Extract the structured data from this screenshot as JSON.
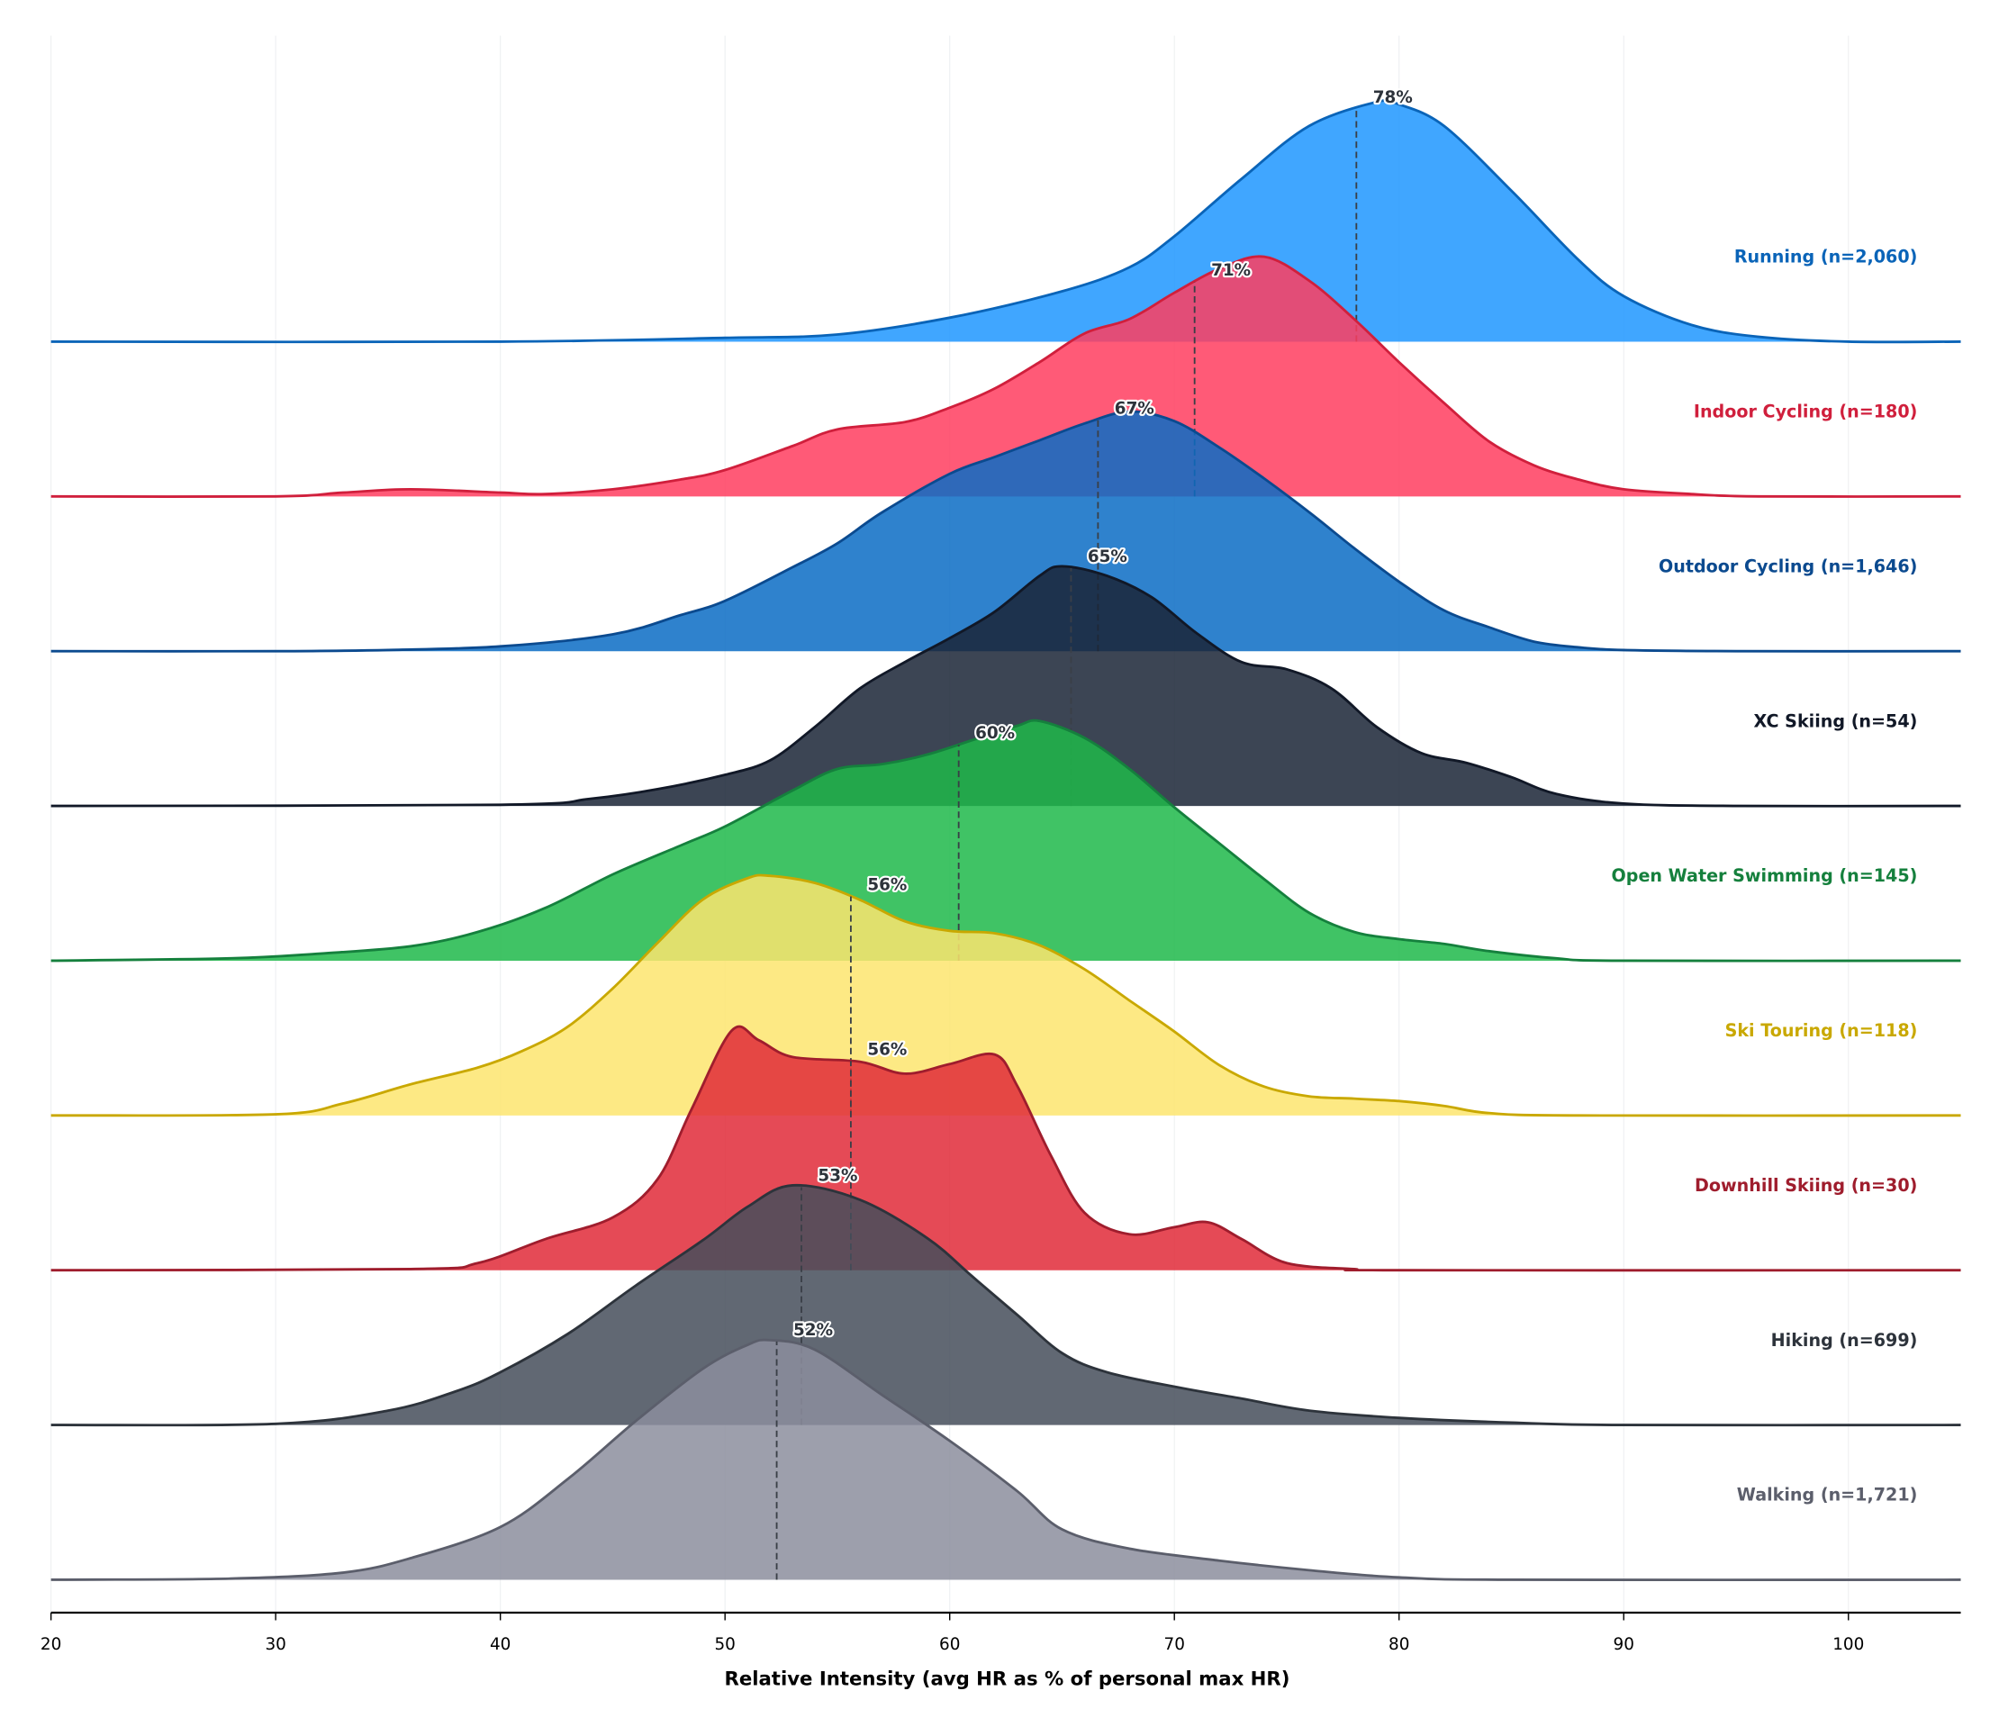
{
  "chart_data": {
    "type": "ridgeline",
    "xlabel": "Relative Intensity  (avg HR as % of personal max HR)",
    "xlim": [
      20,
      105
    ],
    "xticks": [
      "20",
      "30",
      "40",
      "50",
      "60",
      "70",
      "80",
      "90",
      "100"
    ],
    "grid": "vertical",
    "y_units": "relative density (peak = 1)",
    "series": [
      {
        "name": "Running",
        "label": "Running  (n=2,060)",
        "median": 78.1,
        "median_label": "78%",
        "fill": "#1e96ff",
        "stroke": "#0a64b8",
        "points": [
          [
            20,
            0
          ],
          [
            40,
            0
          ],
          [
            50,
            0.016
          ],
          [
            55,
            0.03
          ],
          [
            60,
            0.1
          ],
          [
            65,
            0.21
          ],
          [
            68,
            0.31
          ],
          [
            70,
            0.44
          ],
          [
            73,
            0.68
          ],
          [
            76,
            0.9
          ],
          [
            79,
            1.0
          ],
          [
            80,
            0.99
          ],
          [
            82,
            0.9
          ],
          [
            85,
            0.63
          ],
          [
            88,
            0.34
          ],
          [
            90,
            0.19
          ],
          [
            93,
            0.07
          ],
          [
            96,
            0.02
          ],
          [
            100,
            0
          ],
          [
            105,
            0
          ]
        ]
      },
      {
        "name": "Indoor Cycling",
        "label": "Indoor Cycling  (n=180)",
        "median": 70.9,
        "median_label": "71%",
        "fill": "#ff3d5f",
        "stroke": "#d01f3c",
        "points": [
          [
            20,
            0
          ],
          [
            30,
            0
          ],
          [
            33,
            0.016
          ],
          [
            36,
            0.03
          ],
          [
            40,
            0.016
          ],
          [
            42,
            0.01
          ],
          [
            45,
            0.03
          ],
          [
            48,
            0.07
          ],
          [
            50,
            0.11
          ],
          [
            53,
            0.21
          ],
          [
            55,
            0.28
          ],
          [
            58,
            0.31
          ],
          [
            60,
            0.37
          ],
          [
            62,
            0.45
          ],
          [
            64,
            0.56
          ],
          [
            66,
            0.68
          ],
          [
            68,
            0.74
          ],
          [
            70,
            0.85
          ],
          [
            72,
            0.95
          ],
          [
            74,
            1.0
          ],
          [
            76,
            0.9
          ],
          [
            78,
            0.74
          ],
          [
            80,
            0.56
          ],
          [
            82,
            0.39
          ],
          [
            84,
            0.23
          ],
          [
            86,
            0.13
          ],
          [
            88,
            0.07
          ],
          [
            90,
            0.03
          ],
          [
            93,
            0.01
          ],
          [
            96,
            0
          ],
          [
            105,
            0
          ]
        ]
      },
      {
        "name": "Outdoor Cycling",
        "label": "Outdoor Cycling  (n=1,646)",
        "median": 66.6,
        "median_label": "67%",
        "fill": "#0a6cc4",
        "stroke": "#0b4a8f",
        "points": [
          [
            20,
            0
          ],
          [
            30,
            0
          ],
          [
            35,
            0.005
          ],
          [
            40,
            0.02
          ],
          [
            45,
            0.07
          ],
          [
            48,
            0.15
          ],
          [
            50,
            0.21
          ],
          [
            53,
            0.35
          ],
          [
            55,
            0.45
          ],
          [
            57,
            0.58
          ],
          [
            60,
            0.74
          ],
          [
            62,
            0.81
          ],
          [
            64,
            0.88
          ],
          [
            66,
            0.95
          ],
          [
            68,
            1.0
          ],
          [
            70,
            0.96
          ],
          [
            72,
            0.85
          ],
          [
            74,
            0.72
          ],
          [
            76,
            0.58
          ],
          [
            78,
            0.43
          ],
          [
            80,
            0.29
          ],
          [
            82,
            0.17
          ],
          [
            84,
            0.1
          ],
          [
            86,
            0.04
          ],
          [
            88,
            0.016
          ],
          [
            90,
            0.005
          ],
          [
            95,
            0
          ],
          [
            105,
            0
          ]
        ]
      },
      {
        "name": "XC Skiing",
        "label": "XC Skiing  (n=54)",
        "median": 65.4,
        "median_label": "65%",
        "fill": "#1a2536",
        "stroke": "#111827",
        "points": [
          [
            20,
            0
          ],
          [
            40,
            0.005
          ],
          [
            44,
            0.03
          ],
          [
            47,
            0.07
          ],
          [
            50,
            0.13
          ],
          [
            52,
            0.19
          ],
          [
            54,
            0.33
          ],
          [
            56,
            0.49
          ],
          [
            58,
            0.6
          ],
          [
            60,
            0.7
          ],
          [
            62,
            0.81
          ],
          [
            64,
            0.96
          ],
          [
            65,
            1.0
          ],
          [
            67,
            0.96
          ],
          [
            69,
            0.87
          ],
          [
            71,
            0.72
          ],
          [
            73,
            0.6
          ],
          [
            75,
            0.57
          ],
          [
            77,
            0.49
          ],
          [
            79,
            0.33
          ],
          [
            81,
            0.22
          ],
          [
            83,
            0.18
          ],
          [
            85,
            0.12
          ],
          [
            87,
            0.05
          ],
          [
            90,
            0.01
          ],
          [
            95,
            0
          ],
          [
            105,
            0
          ]
        ]
      },
      {
        "name": "Open Water Swimming",
        "label": "Open Water Swimming  (n=145)",
        "median": 60.4,
        "median_label": "60%",
        "fill": "#1fb94a",
        "stroke": "#15803d",
        "points": [
          [
            20,
            0
          ],
          [
            28,
            0.01
          ],
          [
            32,
            0.03
          ],
          [
            36,
            0.06
          ],
          [
            39,
            0.12
          ],
          [
            42,
            0.22
          ],
          [
            45,
            0.36
          ],
          [
            48,
            0.48
          ],
          [
            50,
            0.56
          ],
          [
            53,
            0.71
          ],
          [
            55,
            0.8
          ],
          [
            57,
            0.82
          ],
          [
            59,
            0.86
          ],
          [
            61,
            0.92
          ],
          [
            63,
            0.98
          ],
          [
            64,
            1.0
          ],
          [
            66,
            0.93
          ],
          [
            68,
            0.8
          ],
          [
            70,
            0.64
          ],
          [
            72,
            0.49
          ],
          [
            74,
            0.34
          ],
          [
            76,
            0.2
          ],
          [
            78,
            0.12
          ],
          [
            80,
            0.09
          ],
          [
            82,
            0.07
          ],
          [
            84,
            0.04
          ],
          [
            87,
            0.01
          ],
          [
            90,
            0
          ],
          [
            105,
            0
          ]
        ]
      },
      {
        "name": "Ski Touring",
        "label": "Ski Touring  (n=118)",
        "median": 55.6,
        "median_label": "56%",
        "fill": "#fde56e",
        "stroke": "#c9a800",
        "points": [
          [
            20,
            0
          ],
          [
            30,
            0.005
          ],
          [
            33,
            0.05
          ],
          [
            36,
            0.13
          ],
          [
            39,
            0.2
          ],
          [
            41,
            0.27
          ],
          [
            43,
            0.37
          ],
          [
            45,
            0.53
          ],
          [
            47,
            0.72
          ],
          [
            49,
            0.9
          ],
          [
            51,
            0.99
          ],
          [
            52,
            1.0
          ],
          [
            54,
            0.97
          ],
          [
            56,
            0.9
          ],
          [
            58,
            0.81
          ],
          [
            60,
            0.77
          ],
          [
            62,
            0.76
          ],
          [
            64,
            0.71
          ],
          [
            66,
            0.61
          ],
          [
            68,
            0.48
          ],
          [
            70,
            0.35
          ],
          [
            72,
            0.21
          ],
          [
            74,
            0.12
          ],
          [
            76,
            0.08
          ],
          [
            78,
            0.07
          ],
          [
            80,
            0.06
          ],
          [
            82,
            0.04
          ],
          [
            84,
            0.01
          ],
          [
            88,
            0
          ],
          [
            105,
            0
          ]
        ]
      },
      {
        "name": "Downhill Skiing",
        "label": "Downhill Skiing  (n=30)",
        "median": 55.6,
        "median_label": "56%",
        "fill": "#e02a38",
        "stroke": "#9f1d2d",
        "points": [
          [
            20,
            0
          ],
          [
            36,
            0.005
          ],
          [
            39,
            0.03
          ],
          [
            42,
            0.13
          ],
          [
            45,
            0.22
          ],
          [
            47,
            0.38
          ],
          [
            48.5,
            0.67
          ],
          [
            50.3,
            1.0
          ],
          [
            51.5,
            0.96
          ],
          [
            53,
            0.89
          ],
          [
            56,
            0.87
          ],
          [
            58,
            0.82
          ],
          [
            60,
            0.86
          ],
          [
            62,
            0.9
          ],
          [
            63,
            0.77
          ],
          [
            64.5,
            0.48
          ],
          [
            66,
            0.24
          ],
          [
            68,
            0.15
          ],
          [
            70,
            0.18
          ],
          [
            71.5,
            0.2
          ],
          [
            73,
            0.13
          ],
          [
            75,
            0.03
          ],
          [
            78,
            0.005
          ],
          [
            80,
            0
          ],
          [
            105,
            0
          ]
        ]
      },
      {
        "name": "Hiking",
        "label": "Hiking  (n=699)",
        "median": 53.4,
        "median_label": "53%",
        "fill": "#454d5b",
        "stroke": "#2d333b",
        "points": [
          [
            20,
            0
          ],
          [
            30,
            0.005
          ],
          [
            35,
            0.06
          ],
          [
            38,
            0.14
          ],
          [
            40,
            0.22
          ],
          [
            43,
            0.38
          ],
          [
            46,
            0.58
          ],
          [
            49,
            0.77
          ],
          [
            51,
            0.91
          ],
          [
            53,
            1.0
          ],
          [
            56,
            0.94
          ],
          [
            59,
            0.78
          ],
          [
            61,
            0.62
          ],
          [
            63,
            0.46
          ],
          [
            65,
            0.3
          ],
          [
            67,
            0.22
          ],
          [
            70,
            0.16
          ],
          [
            73,
            0.11
          ],
          [
            76,
            0.06
          ],
          [
            80,
            0.03
          ],
          [
            85,
            0.01
          ],
          [
            90,
            0
          ],
          [
            105,
            0
          ]
        ]
      },
      {
        "name": "Walking",
        "label": "Walking  (n=1,721)",
        "median": 52.3,
        "median_label": "52%",
        "fill": "#8c8e9e",
        "stroke": "#5b5e6b",
        "points": [
          [
            20,
            0
          ],
          [
            28,
            0.005
          ],
          [
            33,
            0.03
          ],
          [
            36,
            0.09
          ],
          [
            40,
            0.22
          ],
          [
            43,
            0.42
          ],
          [
            46,
            0.66
          ],
          [
            49,
            0.88
          ],
          [
            51,
            0.98
          ],
          [
            52,
            1.0
          ],
          [
            54,
            0.96
          ],
          [
            57,
            0.77
          ],
          [
            60,
            0.58
          ],
          [
            63,
            0.37
          ],
          [
            65,
            0.21
          ],
          [
            68,
            0.13
          ],
          [
            72,
            0.08
          ],
          [
            76,
            0.04
          ],
          [
            80,
            0.01
          ],
          [
            85,
            0
          ],
          [
            105,
            0
          ]
        ]
      }
    ]
  }
}
